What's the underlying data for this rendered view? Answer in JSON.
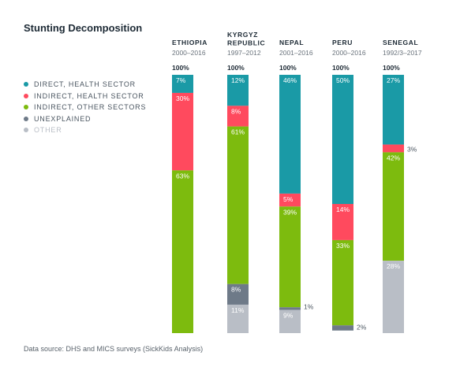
{
  "title": "Stunting Decomposition",
  "source": "Data source: DHS and MICS surveys (SickKids Analysis)",
  "colors": {
    "direct_health": "#1a9aa6",
    "indirect_health": "#ff4a5e",
    "indirect_other": "#7dbb0e",
    "unexplained": "#6e7a88",
    "other": "#b9bec6"
  },
  "chart_data": {
    "type": "bar",
    "stacked": true,
    "categories": [
      {
        "name": "ETHIOPIA",
        "period": "2000–2016"
      },
      {
        "name": "KYRGYZ REPUBLIC",
        "period": "1997–2012"
      },
      {
        "name": "NEPAL",
        "period": "2001–2016"
      },
      {
        "name": "PERU",
        "period": "2000–2016"
      },
      {
        "name": "SENEGAL",
        "period": "1992/3–2017"
      }
    ],
    "totals": [
      "100%",
      "100%",
      "100%",
      "100%",
      "100%"
    ],
    "series": [
      {
        "name": "DIRECT, HEALTH SECTOR",
        "color": "#1a9aa6",
        "values": [
          7,
          12,
          46,
          50,
          27
        ]
      },
      {
        "name": "INDIRECT, HEALTH SECTOR",
        "color": "#ff4a5e",
        "values": [
          30,
          8,
          5,
          14,
          3
        ]
      },
      {
        "name": "INDIRECT, OTHER SECTORS",
        "color": "#7dbb0e",
        "values": [
          63,
          61,
          39,
          33,
          42
        ]
      },
      {
        "name": "UNEXPLAINED",
        "color": "#6e7a88",
        "values": [
          0,
          8,
          1,
          2,
          0
        ]
      },
      {
        "name": "OTHER",
        "color": "#b9bec6",
        "values": [
          0,
          11,
          9,
          0,
          28
        ]
      }
    ],
    "ylim": [
      0,
      100
    ],
    "legend_position": "left",
    "grid": false
  }
}
